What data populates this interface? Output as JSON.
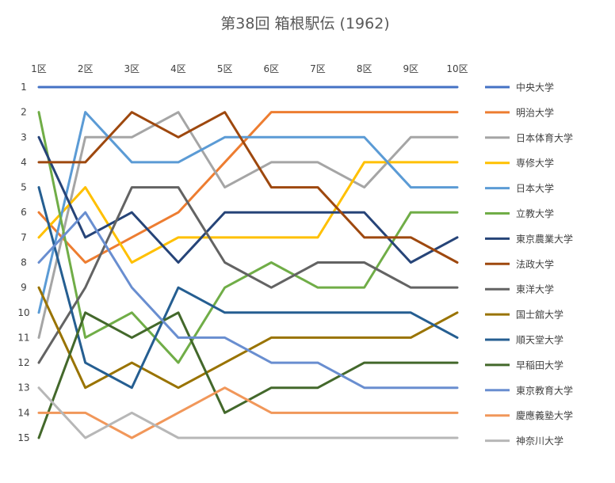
{
  "chart_data": {
    "type": "line",
    "title": "第38回 箱根駅伝 (1962)",
    "xlabel": "",
    "ylabel": "",
    "categories": [
      "1区",
      "2区",
      "3区",
      "4区",
      "5区",
      "6区",
      "7区",
      "8区",
      "9区",
      "10区"
    ],
    "y_ticks": [
      "1",
      "2",
      "3",
      "4",
      "5",
      "6",
      "7",
      "8",
      "9",
      "10",
      "11",
      "12",
      "13",
      "14",
      "15"
    ],
    "ylim": [
      1,
      15
    ],
    "y_inverted": true,
    "x_axis_position": "top",
    "grid": false,
    "legend_position": "right",
    "series": [
      {
        "name": "中央大学",
        "color": "#4472C4",
        "values": [
          1,
          1,
          1,
          1,
          1,
          1,
          1,
          1,
          1,
          1
        ]
      },
      {
        "name": "明治大学",
        "color": "#ED7D31",
        "values": [
          6,
          8,
          7,
          6,
          4,
          2,
          2,
          2,
          2,
          2
        ]
      },
      {
        "name": "日本体育大学",
        "color": "#A5A5A5",
        "values": [
          11,
          3,
          3,
          2,
          5,
          4,
          4,
          5,
          3,
          3
        ]
      },
      {
        "name": "専修大学",
        "color": "#FFC000",
        "values": [
          7,
          5,
          8,
          7,
          7,
          7,
          7,
          4,
          4,
          4
        ]
      },
      {
        "name": "日本大学",
        "color": "#5B9BD5",
        "values": [
          10,
          2,
          4,
          4,
          3,
          3,
          3,
          3,
          5,
          5
        ]
      },
      {
        "name": "立教大学",
        "color": "#70AD47",
        "values": [
          2,
          11,
          10,
          12,
          9,
          8,
          9,
          9,
          6,
          6
        ]
      },
      {
        "name": "東京農業大学",
        "color": "#264478",
        "values": [
          3,
          7,
          6,
          8,
          6,
          6,
          6,
          6,
          8,
          7
        ]
      },
      {
        "name": "法政大学",
        "color": "#9E480E",
        "values": [
          4,
          4,
          2,
          3,
          2,
          5,
          5,
          7,
          7,
          8
        ]
      },
      {
        "name": "東洋大学",
        "color": "#636363",
        "values": [
          12,
          9,
          5,
          5,
          8,
          9,
          8,
          8,
          9,
          9
        ]
      },
      {
        "name": "国士舘大学",
        "color": "#997300",
        "values": [
          9,
          13,
          12,
          13,
          12,
          11,
          11,
          11,
          11,
          10
        ]
      },
      {
        "name": "順天堂大学",
        "color": "#255E91",
        "values": [
          5,
          12,
          13,
          9,
          10,
          10,
          10,
          10,
          10,
          11
        ]
      },
      {
        "name": "早稲田大学",
        "color": "#43682B",
        "values": [
          15,
          10,
          11,
          10,
          14,
          13,
          13,
          12,
          12,
          12
        ]
      },
      {
        "name": "東京教育大学",
        "color": "#698ED0",
        "values": [
          8,
          6,
          9,
          11,
          11,
          12,
          12,
          13,
          13,
          13
        ]
      },
      {
        "name": "慶應義塾大学",
        "color": "#F1975A",
        "values": [
          14,
          14,
          15,
          14,
          13,
          14,
          14,
          14,
          14,
          14
        ]
      },
      {
        "name": "神奈川大学",
        "color": "#B7B7B7",
        "values": [
          13,
          15,
          14,
          15,
          15,
          15,
          15,
          15,
          15,
          15
        ]
      }
    ]
  }
}
